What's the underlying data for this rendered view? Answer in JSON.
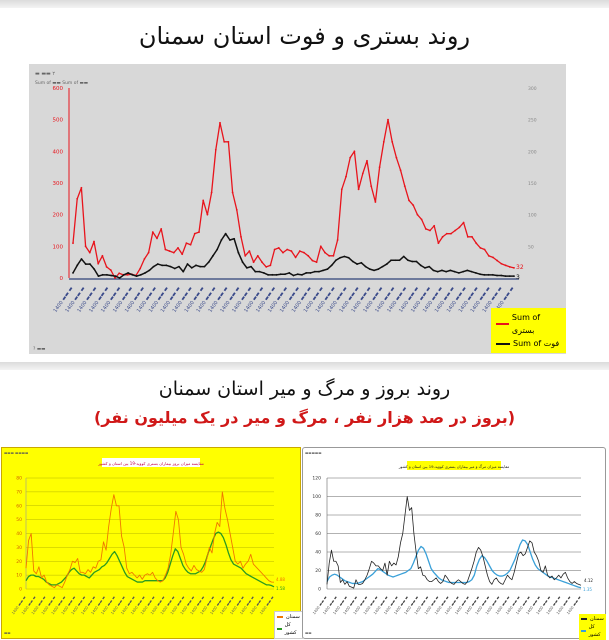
{
  "top_title": "روند بستری و فوت استان سمنان",
  "bottom_title": "روند بروز و مرگ و میر استان سمنان",
  "bottom_subtitle": "(بروز در صد هزار نفر ، مرگ و میر در یک میلیون نفر)",
  "colors": {
    "hosp": "#e8141c",
    "death": "#111111",
    "incidence_semnan": "#f07800",
    "incidence_national": "#2a9a20",
    "mortality_semnan": "#222222",
    "mortality_national": "#3aa0d8",
    "legend_bg": "#ffff00",
    "panel_gray": "#d8d8d8"
  },
  "legends": {
    "top": {
      "hosp": "Sum of بستری",
      "death": "Sum of فوت"
    },
    "bottom_left": {
      "semnan": "سمنان",
      "national": "کل کشور"
    },
    "bottom_right": {
      "semnan": "سمنان",
      "national": "کل کشور"
    }
  },
  "chart_data": [
    {
      "type": "line",
      "title": "روند بستری و فوت استان سمنان",
      "xlabel": "",
      "ylabel_left": "",
      "ylabel_right": "",
      "ylim_left": [
        0,
        600
      ],
      "ylim_right": [
        0,
        300
      ],
      "yticks_left": [
        0,
        100,
        200,
        300,
        400,
        500,
        600
      ],
      "yticks_right": [
        0,
        50,
        100,
        150,
        200,
        250,
        300
      ],
      "grid": false,
      "legend_position": "bottom-right",
      "x_range": "week 1399 → week 1400 (weekly, rotated labels)",
      "series": [
        {
          "name": "Sum of بستری",
          "axis": "left",
          "values": [
            110,
            250,
            285,
            100,
            80,
            115,
            45,
            70,
            35,
            25,
            0,
            15,
            10,
            10,
            12,
            8,
            30,
            60,
            80,
            145,
            125,
            155,
            90,
            85,
            80,
            95,
            75,
            110,
            105,
            140,
            145,
            245,
            200,
            270,
            405,
            490,
            430,
            430,
            270,
            215,
            130,
            70,
            85,
            50,
            70,
            50,
            35,
            40,
            90,
            95,
            80,
            90,
            85,
            65,
            85,
            80,
            70,
            55,
            50,
            100,
            80,
            70,
            70,
            120,
            280,
            320,
            380,
            400,
            280,
            330,
            370,
            290,
            240,
            350,
            430,
            500,
            430,
            380,
            340,
            290,
            245,
            230,
            200,
            185,
            155,
            150,
            165,
            110,
            130,
            140,
            140,
            150,
            160,
            175,
            130,
            130,
            110,
            95,
            90,
            70,
            65,
            55,
            45,
            40,
            35,
            32
          ],
          "end_label": "32"
        },
        {
          "name": "Sum of فوت",
          "axis": "right",
          "values": [
            8,
            20,
            30,
            22,
            22,
            14,
            3,
            5,
            5,
            4,
            3,
            0,
            5,
            8,
            5,
            3,
            5,
            8,
            12,
            18,
            22,
            20,
            20,
            18,
            15,
            18,
            10,
            22,
            16,
            20,
            18,
            18,
            25,
            35,
            45,
            60,
            70,
            60,
            62,
            40,
            25,
            16,
            18,
            10,
            10,
            8,
            5,
            5,
            5,
            6,
            6,
            8,
            4,
            6,
            5,
            8,
            8,
            10,
            10,
            12,
            14,
            20,
            28,
            32,
            34,
            32,
            26,
            22,
            24,
            18,
            14,
            12,
            14,
            18,
            22,
            28,
            28,
            28,
            34,
            28,
            26,
            26,
            20,
            16,
            18,
            12,
            10,
            12,
            10,
            12,
            10,
            8,
            10,
            12,
            10,
            8,
            6,
            5,
            5,
            5,
            4,
            4,
            3,
            3,
            3
          ],
          "end_label": "3"
        }
      ]
    },
    {
      "type": "line",
      "title": "مقایسه میزان بروز بیماران بستری کووید-19 بین استان و کشور",
      "xlabel": "",
      "ylabel": "",
      "ylim": [
        0,
        80
      ],
      "yticks": [
        0,
        10,
        20,
        30,
        40,
        50,
        60,
        70,
        80
      ],
      "grid": true,
      "legend_position": "bottom-right",
      "series": [
        {
          "name": "سمنان",
          "values": [
            15,
            35,
            40,
            13,
            11,
            16,
            8,
            10,
            5,
            3,
            2,
            1,
            3,
            2,
            1,
            5,
            10,
            14,
            20,
            19,
            22,
            12,
            12,
            11,
            14,
            12,
            16,
            15,
            20,
            21,
            34,
            28,
            45,
            58,
            68,
            60,
            60,
            38,
            30,
            15,
            11,
            12,
            10,
            8,
            10,
            7,
            10,
            11,
            10,
            12,
            8,
            6,
            5,
            6,
            10,
            15,
            25,
            40,
            56,
            50,
            30,
            25,
            18,
            15,
            13,
            17,
            14,
            13,
            12,
            14,
            22,
            30,
            26,
            40,
            48,
            45,
            70,
            58,
            50,
            40,
            30,
            20,
            18,
            20,
            15,
            18,
            20,
            25,
            18,
            16,
            14,
            12,
            10,
            8,
            6,
            5,
            4.88
          ],
          "end_label": "4.88"
        },
        {
          "name": "کل کشور",
          "values": [
            6,
            9,
            10,
            10,
            9,
            9,
            8,
            7,
            5,
            4,
            3,
            3,
            3,
            4,
            5,
            7,
            9,
            12,
            14,
            15,
            13,
            11,
            10,
            10,
            9,
            8,
            10,
            12,
            13,
            14,
            16,
            17,
            19,
            22,
            25,
            27,
            24,
            20,
            16,
            12,
            9,
            8,
            7,
            6,
            5,
            5,
            5,
            6,
            6,
            6,
            6,
            6,
            6,
            6,
            6,
            8,
            12,
            18,
            24,
            29,
            27,
            22,
            17,
            14,
            12,
            11,
            11,
            11,
            12,
            13,
            16,
            20,
            26,
            31,
            36,
            40,
            41,
            40,
            37,
            32,
            26,
            21,
            18,
            17,
            16,
            15,
            13,
            11,
            10,
            9,
            8,
            7,
            6,
            5,
            4,
            3,
            3,
            2.5,
            1.58
          ],
          "end_label": "1.58"
        }
      ]
    },
    {
      "type": "line",
      "title": "مقایسه میزان مرگ و میر بیماران بستری کووید-19 بین استان و کشور",
      "xlabel": "",
      "ylabel": "",
      "ylim": [
        0,
        120
      ],
      "yticks": [
        0,
        20,
        40,
        60,
        80,
        100,
        120
      ],
      "grid": true,
      "legend_position": "bottom-right",
      "series": [
        {
          "name": "سمنان",
          "values": [
            5,
            28,
            42,
            30,
            30,
            25,
            7,
            10,
            5,
            8,
            3,
            2,
            1,
            10,
            5,
            5,
            6,
            10,
            15,
            22,
            30,
            28,
            25,
            25,
            22,
            20,
            28,
            15,
            30,
            25,
            28,
            26,
            35,
            50,
            60,
            80,
            100,
            85,
            88,
            60,
            40,
            22,
            24,
            15,
            14,
            10,
            8,
            8,
            10,
            12,
            8,
            6,
            8,
            15,
            12,
            8,
            6,
            5,
            8,
            10,
            8,
            6,
            5,
            8,
            15,
            22,
            30,
            40,
            45,
            42,
            35,
            25,
            15,
            8,
            5,
            10,
            12,
            8,
            6,
            5,
            10,
            15,
            12,
            10,
            18,
            28,
            38,
            40,
            36,
            38,
            45,
            52,
            50,
            40,
            36,
            30,
            20,
            18,
            25,
            15,
            12,
            14,
            10,
            12,
            15,
            12,
            16,
            18,
            12,
            8,
            6,
            8,
            6,
            5,
            4.12
          ],
          "end_label": "4.12"
        },
        {
          "name": "کل کشور",
          "values": [
            8,
            13,
            15,
            16,
            15,
            13,
            11,
            9,
            8,
            7,
            6,
            6,
            6,
            7,
            8,
            10,
            12,
            14,
            16,
            19,
            22,
            21,
            19,
            17,
            15,
            14,
            13,
            14,
            15,
            16,
            17,
            18,
            20,
            22,
            28,
            35,
            42,
            46,
            44,
            38,
            30,
            22,
            18,
            15,
            12,
            10,
            9,
            8,
            7,
            7,
            7,
            7,
            7,
            7,
            7,
            7,
            8,
            10,
            15,
            25,
            32,
            36,
            34,
            30,
            25,
            20,
            17,
            15,
            14,
            14,
            15,
            17,
            20,
            26,
            32,
            40,
            48,
            53,
            52,
            48,
            40,
            32,
            26,
            22,
            20,
            18,
            16,
            14,
            13,
            12,
            11,
            10,
            9,
            8,
            7,
            6,
            5,
            4,
            3,
            2,
            1.35
          ],
          "end_label": "1.35"
        }
      ]
    }
  ]
}
